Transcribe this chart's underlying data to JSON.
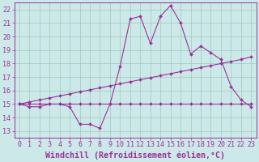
{
  "hours": [
    0,
    1,
    2,
    3,
    4,
    5,
    6,
    7,
    8,
    9,
    10,
    11,
    12,
    13,
    14,
    15,
    16,
    17,
    18,
    19,
    20,
    21,
    22,
    23
  ],
  "curve_main": [
    15.0,
    14.8,
    14.8,
    15.0,
    15.0,
    14.8,
    13.5,
    13.5,
    13.2,
    15.0,
    17.8,
    21.3,
    21.5,
    19.5,
    21.5,
    22.3,
    21.0,
    18.7,
    19.3,
    18.8,
    18.3,
    16.3,
    15.3,
    14.8
  ],
  "curve_flat": [
    15.0,
    15.0,
    15.0,
    15.0,
    15.0,
    15.0,
    15.0,
    15.0,
    15.0,
    15.0,
    15.0,
    15.0,
    15.0,
    15.0,
    15.0,
    15.0,
    15.0,
    15.0,
    15.0,
    15.0,
    15.0,
    15.0,
    15.0,
    15.0
  ],
  "curve_rising": [
    15.0,
    15.15,
    15.3,
    15.45,
    15.6,
    15.75,
    15.9,
    16.05,
    16.2,
    16.35,
    16.5,
    16.65,
    16.8,
    16.95,
    17.1,
    17.25,
    17.4,
    17.55,
    17.7,
    17.85,
    18.0,
    18.15,
    18.3,
    18.5
  ],
  "ylim": [
    12.5,
    22.5
  ],
  "xlim": [
    -0.5,
    23.5
  ],
  "yticks": [
    13,
    14,
    15,
    16,
    17,
    18,
    19,
    20,
    21,
    22
  ],
  "xticks": [
    0,
    1,
    2,
    3,
    4,
    5,
    6,
    7,
    8,
    9,
    10,
    11,
    12,
    13,
    14,
    15,
    16,
    17,
    18,
    19,
    20,
    21,
    22,
    23
  ],
  "line_color": "#993399",
  "bg_color": "#cce8e8",
  "grid_color": "#99ccbb",
  "xlabel": "Windchill (Refroidissement éolien,°C)",
  "tick_fontsize": 6.0,
  "xlabel_fontsize": 7.2
}
